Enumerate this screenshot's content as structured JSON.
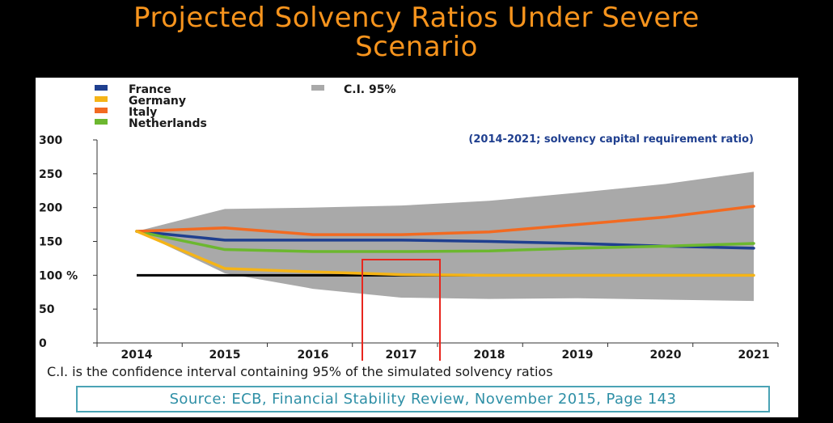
{
  "slide": {
    "title_line1": "Projected Solvency Ratios Under Severe",
    "title_line2": "Scenario",
    "title_color": "#f7941d"
  },
  "notes": {
    "ci_definition": "C.I. is the confidence interval containing 95% of the simulated solvency ratios",
    "source": "Source: ECB, Financial Stability Review, November 2015, Page 143"
  },
  "chart_data": {
    "type": "line",
    "title": "",
    "subtitle": "(2014-2021; solvency capital requirement ratio)",
    "xlabel": "",
    "ylabel": "",
    "x": [
      "2014",
      "2015",
      "2016",
      "2017",
      "2018",
      "2019",
      "2020",
      "2021"
    ],
    "ylim": [
      0,
      300
    ],
    "yticks": [
      0,
      50,
      100,
      150,
      200,
      250,
      300
    ],
    "ytick_labels": [
      "0",
      "50",
      "100 %",
      "150",
      "200",
      "250",
      "300"
    ],
    "grid": false,
    "legend_position": "top-left",
    "series": [
      {
        "name": "France",
        "color": "#1f3f8f",
        "values": [
          165,
          152,
          152,
          152,
          150,
          147,
          143,
          140
        ]
      },
      {
        "name": "Germany",
        "color": "#f5b417",
        "values": [
          165,
          110,
          105,
          101,
          100,
          100,
          100,
          100
        ]
      },
      {
        "name": "Italy",
        "color": "#f26a21",
        "values": [
          165,
          170,
          160,
          160,
          164,
          175,
          186,
          202
        ]
      },
      {
        "name": "Netherlands",
        "color": "#6cb72f",
        "values": [
          165,
          138,
          135,
          135,
          136,
          140,
          143,
          147
        ]
      }
    ],
    "confidence_band": {
      "name": "C.I. 95%",
      "color": "#a9a9a9",
      "upper": [
        165,
        198,
        200,
        203,
        210,
        222,
        235,
        253
      ],
      "lower": [
        165,
        103,
        80,
        67,
        65,
        66,
        64,
        62
      ]
    },
    "reference_line": {
      "value": 100,
      "color": "#000000"
    },
    "highlight": {
      "category": "2017",
      "color": "#e8261e"
    }
  }
}
